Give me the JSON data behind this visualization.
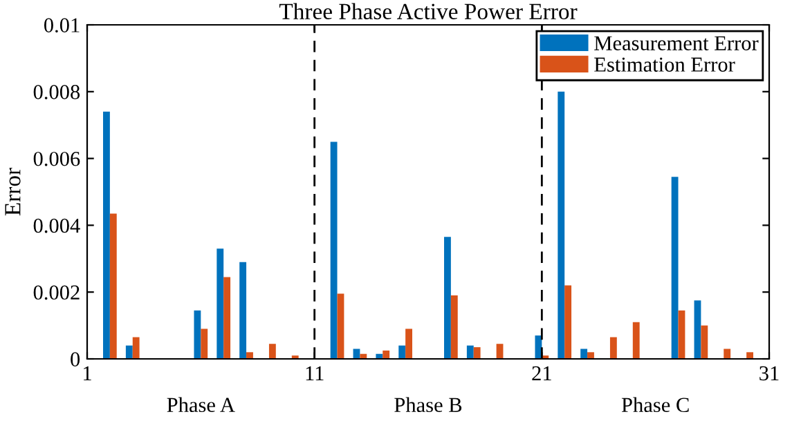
{
  "chart_data": {
    "type": "bar",
    "title": "Three Phase Active Power Error",
    "ylabel": "Error",
    "x": [
      2,
      3,
      4,
      5,
      6,
      7,
      8,
      9,
      10,
      11,
      12,
      13,
      14,
      15,
      16,
      17,
      18,
      19,
      20,
      21,
      22,
      23,
      24,
      25,
      26,
      27,
      28,
      29,
      30
    ],
    "series": [
      {
        "name": "Measurement Error",
        "color": "#0072bd",
        "values": [
          0.0074,
          0.0004,
          0,
          0,
          0.00145,
          0.0033,
          0.0029,
          0,
          0,
          0,
          0.0065,
          0.0003,
          0.00015,
          0.0004,
          0,
          0.00365,
          0.0004,
          0,
          0,
          0.0007,
          0.008,
          0.0003,
          0,
          0,
          0,
          0.00545,
          0.00175,
          0,
          0
        ]
      },
      {
        "name": "Estimation Error",
        "color": "#d95319",
        "values": [
          0.00435,
          0.00065,
          0,
          0,
          0.0009,
          0.00245,
          0.0002,
          0.00045,
          0.0001,
          0,
          0.00195,
          0.00015,
          0.00025,
          0.0009,
          0,
          0.0019,
          0.00035,
          0.00045,
          0,
          0.0001,
          0.0022,
          0.0002,
          0.00065,
          0.0011,
          0,
          0.00145,
          0.001,
          0.0003,
          0.0002
        ]
      }
    ],
    "xlim": [
      1,
      31
    ],
    "xticks": [
      1,
      11,
      21,
      31
    ],
    "ylim": [
      0,
      0.01
    ],
    "yticks": [
      0,
      0.002,
      0.004,
      0.006,
      0.008,
      0.01
    ],
    "ref_lines": [
      {
        "axis": "x",
        "value": 11,
        "color": "#000000",
        "line_style": "dashed"
      },
      {
        "axis": "x",
        "value": 21,
        "color": "#000000",
        "line_style": "dashed"
      }
    ],
    "annotations": [
      "Phase A",
      "Phase B",
      "Phase C"
    ],
    "legend": "top right",
    "grid": false
  }
}
